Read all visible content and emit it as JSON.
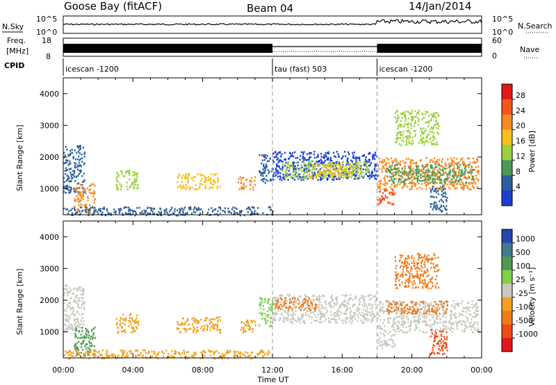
{
  "header": {
    "station": "Goose Bay (fitACF)",
    "beam": "Beam 04",
    "date": "14/Jan/2014"
  },
  "panels": {
    "nsky": {
      "label": "N.Sky",
      "ticks": [
        "10^5",
        "10^0"
      ],
      "right_label": "N.Search",
      "right_ticks": [
        "10^5",
        "10^0"
      ]
    },
    "freq": {
      "label_line1": "Freq.",
      "label_line2": "[MHz]",
      "ticks": [
        "18",
        "8"
      ],
      "right_label": "Nave",
      "right_ticks": [
        "60",
        "0"
      ]
    },
    "cpid": {
      "label": "CPID"
    }
  },
  "cpid_segments": [
    {
      "name": "icescan -1200",
      "start_h": 0,
      "end_h": 12
    },
    {
      "name": "tau (fast) 503",
      "start_h": 12,
      "end_h": 18
    },
    {
      "name": "icescan -1200",
      "start_h": 18,
      "end_h": 24
    }
  ],
  "colorbars": {
    "power": {
      "label": "Power [dB]",
      "ticks": [
        "28",
        "24",
        "20",
        "16",
        "12",
        "8",
        "4"
      ],
      "colors": [
        "#e11818",
        "#f2561a",
        "#f58a1f",
        "#f8bf1f",
        "#9bd23b",
        "#4a9a55",
        "#2c5f9e",
        "#1a3fd0"
      ]
    },
    "velocity": {
      "label": "Velocity [m s⁻¹]",
      "ticks": [
        "1000",
        "500",
        "100",
        "25",
        "-25",
        "-100",
        "-500",
        "-1000"
      ],
      "colors": [
        "#2845b0",
        "#3f7a8e",
        "#4d9a52",
        "#7ed04a",
        "#c8c8c0",
        "#f0a11e",
        "#f07a18",
        "#f04a14",
        "#e01818"
      ]
    }
  },
  "chart_data": [
    {
      "type": "heatmap",
      "title": "",
      "quantity": "Power",
      "xlabel": "",
      "ylabel": "Slant Range [km]",
      "xlim": [
        0,
        24
      ],
      "ylim": [
        180,
        4500
      ],
      "x_ticks": [
        "00:00",
        "04:00",
        "08:00",
        "12:00",
        "16:00",
        "20:00",
        "00:00"
      ],
      "y_ticks": [
        1000,
        2000,
        3000,
        4000
      ],
      "regions": [
        {
          "t0": 0.0,
          "t1": 1.2,
          "r0": 900,
          "r1": 2400,
          "color": "#2c5f9e"
        },
        {
          "t0": 0.6,
          "t1": 1.8,
          "r0": 250,
          "r1": 1200,
          "color": "#f58a1f"
        },
        {
          "t0": 3.0,
          "t1": 4.3,
          "r0": 1000,
          "r1": 1600,
          "color": "#9bd23b"
        },
        {
          "t0": 6.5,
          "t1": 9.0,
          "r0": 1000,
          "r1": 1500,
          "color": "#f8bf1f"
        },
        {
          "t0": 10.0,
          "t1": 11.0,
          "r0": 1000,
          "r1": 1400,
          "color": "#f58a1f"
        },
        {
          "t0": 11.2,
          "t1": 12.0,
          "r0": 1200,
          "r1": 2100,
          "color": "#2c5f9e"
        },
        {
          "t0": 12.0,
          "t1": 18.0,
          "r0": 1300,
          "r1": 2200,
          "color": "#1a3fd0"
        },
        {
          "t0": 12.5,
          "t1": 17.5,
          "r0": 1350,
          "r1": 1900,
          "color": "#9bd23b"
        },
        {
          "t0": 14.0,
          "t1": 17.0,
          "r0": 1400,
          "r1": 1800,
          "color": "#f8bf1f"
        },
        {
          "t0": 18.0,
          "t1": 23.8,
          "r0": 1000,
          "r1": 2000,
          "color": "#f58a1f"
        },
        {
          "t0": 18.5,
          "t1": 23.5,
          "r0": 1200,
          "r1": 1800,
          "color": "#4a9a55"
        },
        {
          "t0": 18.0,
          "t1": 19.0,
          "r0": 500,
          "r1": 1000,
          "color": "#f2561a"
        },
        {
          "t0": 19.0,
          "t1": 21.5,
          "r0": 2400,
          "r1": 3500,
          "color": "#9bd23b"
        },
        {
          "t0": 21.0,
          "t1": 22.0,
          "r0": 300,
          "r1": 1100,
          "color": "#2c5f9e"
        },
        {
          "t0": 0.0,
          "t1": 12.0,
          "r0": 180,
          "r1": 450,
          "color": "#2c5f9e"
        }
      ]
    },
    {
      "type": "heatmap",
      "title": "",
      "quantity": "Velocity",
      "xlabel": "Time UT",
      "ylabel": "Slant Range [km]",
      "xlim": [
        0,
        24
      ],
      "ylim": [
        180,
        4500
      ],
      "x_ticks": [
        "00:00",
        "04:00",
        "08:00",
        "12:00",
        "16:00",
        "20:00",
        "00:00"
      ],
      "y_ticks": [
        1000,
        2000,
        3000,
        4000
      ],
      "regions": [
        {
          "t0": 0.0,
          "t1": 1.2,
          "r0": 1000,
          "r1": 2500,
          "color": "#c8c8c0"
        },
        {
          "t0": 0.6,
          "t1": 1.8,
          "r0": 250,
          "r1": 1200,
          "color": "#4d9a52"
        },
        {
          "t0": 3.0,
          "t1": 4.3,
          "r0": 1000,
          "r1": 1600,
          "color": "#f0a11e"
        },
        {
          "t0": 6.5,
          "t1": 9.0,
          "r0": 1000,
          "r1": 1500,
          "color": "#f0a11e"
        },
        {
          "t0": 10.0,
          "t1": 11.0,
          "r0": 1000,
          "r1": 1400,
          "color": "#f0a11e"
        },
        {
          "t0": 11.2,
          "t1": 12.0,
          "r0": 1200,
          "r1": 2100,
          "color": "#7ed04a"
        },
        {
          "t0": 12.0,
          "t1": 18.0,
          "r0": 1300,
          "r1": 2200,
          "color": "#c8c8c0"
        },
        {
          "t0": 12.0,
          "t1": 14.5,
          "r0": 1700,
          "r1": 2100,
          "color": "#f07a18"
        },
        {
          "t0": 18.0,
          "t1": 23.8,
          "r0": 1000,
          "r1": 2000,
          "color": "#c8c8c0"
        },
        {
          "t0": 18.5,
          "t1": 22.0,
          "r0": 1600,
          "r1": 2000,
          "color": "#f07a18"
        },
        {
          "t0": 18.0,
          "t1": 19.0,
          "r0": 500,
          "r1": 1000,
          "color": "#c8c8c0"
        },
        {
          "t0": 19.0,
          "t1": 21.5,
          "r0": 2400,
          "r1": 3500,
          "color": "#f07a18"
        },
        {
          "t0": 21.0,
          "t1": 22.0,
          "r0": 300,
          "r1": 1100,
          "color": "#f04a14"
        },
        {
          "t0": 0.0,
          "t1": 12.0,
          "r0": 180,
          "r1": 450,
          "color": "#f0a11e"
        }
      ]
    }
  ]
}
